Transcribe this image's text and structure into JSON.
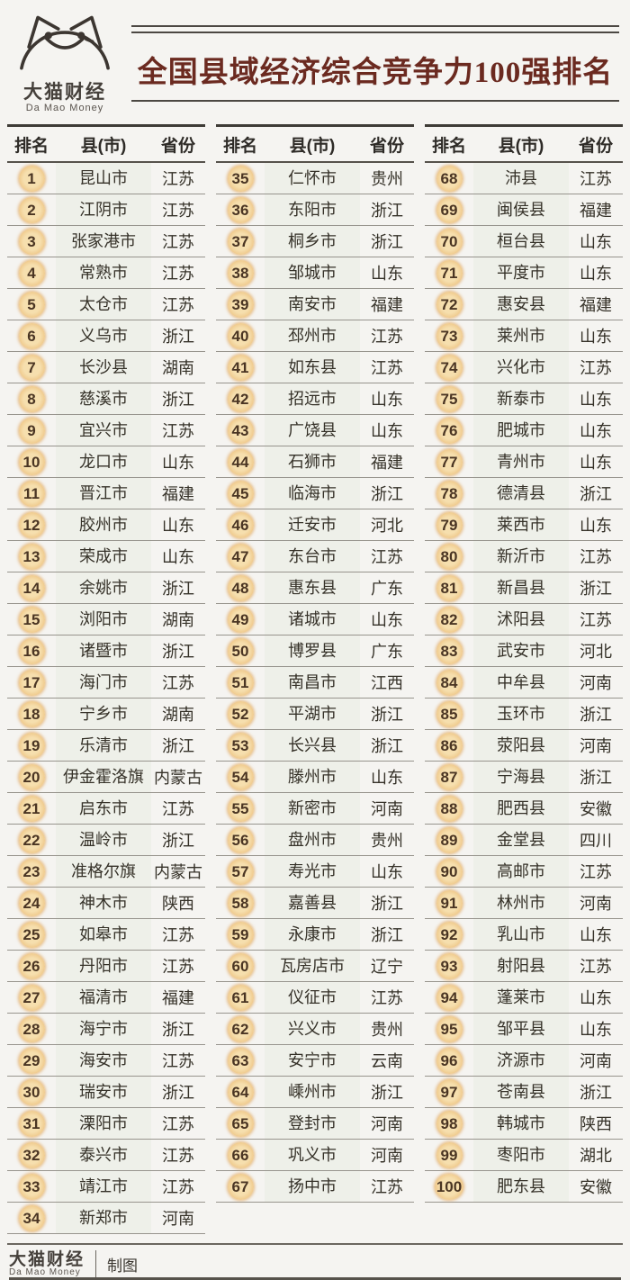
{
  "colors": {
    "accent_title": "#6b2a20",
    "badge_fill": "#efc98c",
    "badge_edge": "#e2a963",
    "text_dark": "#353128",
    "row_line": "#97948d",
    "county_stripe": "#eef0e9",
    "page_bg": "#f5f4f1"
  },
  "logo": {
    "name_cn": "大猫财经",
    "name_en": "Da Mao Money"
  },
  "header": {
    "title": "全国县域经济综合竞争力100强排名"
  },
  "table": {
    "columns": [
      "排名",
      "县(市)",
      "省份"
    ],
    "groups": [
      {
        "rows": [
          {
            "rank": "1",
            "county": "昆山市",
            "province": "江苏"
          },
          {
            "rank": "2",
            "county": "江阴市",
            "province": "江苏"
          },
          {
            "rank": "3",
            "county": "张家港市",
            "province": "江苏"
          },
          {
            "rank": "4",
            "county": "常熟市",
            "province": "江苏"
          },
          {
            "rank": "5",
            "county": "太仓市",
            "province": "江苏"
          },
          {
            "rank": "6",
            "county": "义乌市",
            "province": "浙江"
          },
          {
            "rank": "7",
            "county": "长沙县",
            "province": "湖南"
          },
          {
            "rank": "8",
            "county": "慈溪市",
            "province": "浙江"
          },
          {
            "rank": "9",
            "county": "宜兴市",
            "province": "江苏"
          },
          {
            "rank": "10",
            "county": "龙口市",
            "province": "山东"
          },
          {
            "rank": "11",
            "county": "晋江市",
            "province": "福建"
          },
          {
            "rank": "12",
            "county": "胶州市",
            "province": "山东"
          },
          {
            "rank": "13",
            "county": "荣成市",
            "province": "山东"
          },
          {
            "rank": "14",
            "county": "余姚市",
            "province": "浙江"
          },
          {
            "rank": "15",
            "county": "浏阳市",
            "province": "湖南"
          },
          {
            "rank": "16",
            "county": "诸暨市",
            "province": "浙江"
          },
          {
            "rank": "17",
            "county": "海门市",
            "province": "江苏"
          },
          {
            "rank": "18",
            "county": "宁乡市",
            "province": "湖南"
          },
          {
            "rank": "19",
            "county": "乐清市",
            "province": "浙江"
          },
          {
            "rank": "20",
            "county": "伊金霍洛旗",
            "province": "内蒙古"
          },
          {
            "rank": "21",
            "county": "启东市",
            "province": "江苏"
          },
          {
            "rank": "22",
            "county": "温岭市",
            "province": "浙江"
          },
          {
            "rank": "23",
            "county": "准格尔旗",
            "province": "内蒙古"
          },
          {
            "rank": "24",
            "county": "神木市",
            "province": "陕西"
          },
          {
            "rank": "25",
            "county": "如皋市",
            "province": "江苏"
          },
          {
            "rank": "26",
            "county": "丹阳市",
            "province": "江苏"
          },
          {
            "rank": "27",
            "county": "福清市",
            "province": "福建"
          },
          {
            "rank": "28",
            "county": "海宁市",
            "province": "浙江"
          },
          {
            "rank": "29",
            "county": "海安市",
            "province": "江苏"
          },
          {
            "rank": "30",
            "county": "瑞安市",
            "province": "浙江"
          },
          {
            "rank": "31",
            "county": "溧阳市",
            "province": "江苏"
          },
          {
            "rank": "32",
            "county": "泰兴市",
            "province": "江苏"
          },
          {
            "rank": "33",
            "county": "靖江市",
            "province": "江苏"
          },
          {
            "rank": "34",
            "county": "新郑市",
            "province": "河南"
          }
        ]
      },
      {
        "rows": [
          {
            "rank": "35",
            "county": "仁怀市",
            "province": "贵州"
          },
          {
            "rank": "36",
            "county": "东阳市",
            "province": "浙江"
          },
          {
            "rank": "37",
            "county": "桐乡市",
            "province": "浙江"
          },
          {
            "rank": "38",
            "county": "邹城市",
            "province": "山东"
          },
          {
            "rank": "39",
            "county": "南安市",
            "province": "福建"
          },
          {
            "rank": "40",
            "county": "邳州市",
            "province": "江苏"
          },
          {
            "rank": "41",
            "county": "如东县",
            "province": "江苏"
          },
          {
            "rank": "42",
            "county": "招远市",
            "province": "山东"
          },
          {
            "rank": "43",
            "county": "广饶县",
            "province": "山东"
          },
          {
            "rank": "44",
            "county": "石狮市",
            "province": "福建"
          },
          {
            "rank": "45",
            "county": "临海市",
            "province": "浙江"
          },
          {
            "rank": "46",
            "county": "迁安市",
            "province": "河北"
          },
          {
            "rank": "47",
            "county": "东台市",
            "province": "江苏"
          },
          {
            "rank": "48",
            "county": "惠东县",
            "province": "广东"
          },
          {
            "rank": "49",
            "county": "诸城市",
            "province": "山东"
          },
          {
            "rank": "50",
            "county": "博罗县",
            "province": "广东"
          },
          {
            "rank": "51",
            "county": "南昌市",
            "province": "江西"
          },
          {
            "rank": "52",
            "county": "平湖市",
            "province": "浙江"
          },
          {
            "rank": "53",
            "county": "长兴县",
            "province": "浙江"
          },
          {
            "rank": "54",
            "county": "滕州市",
            "province": "山东"
          },
          {
            "rank": "55",
            "county": "新密市",
            "province": "河南"
          },
          {
            "rank": "56",
            "county": "盘州市",
            "province": "贵州"
          },
          {
            "rank": "57",
            "county": "寿光市",
            "province": "山东"
          },
          {
            "rank": "58",
            "county": "嘉善县",
            "province": "浙江"
          },
          {
            "rank": "59",
            "county": "永康市",
            "province": "浙江"
          },
          {
            "rank": "60",
            "county": "瓦房店市",
            "province": "辽宁"
          },
          {
            "rank": "61",
            "county": "仪征市",
            "province": "江苏"
          },
          {
            "rank": "62",
            "county": "兴义市",
            "province": "贵州"
          },
          {
            "rank": "63",
            "county": "安宁市",
            "province": "云南"
          },
          {
            "rank": "64",
            "county": "嵊州市",
            "province": "浙江"
          },
          {
            "rank": "65",
            "county": "登封市",
            "province": "河南"
          },
          {
            "rank": "66",
            "county": "巩义市",
            "province": "河南"
          },
          {
            "rank": "67",
            "county": "扬中市",
            "province": "江苏"
          }
        ]
      },
      {
        "rows": [
          {
            "rank": "68",
            "county": "沛县",
            "province": "江苏"
          },
          {
            "rank": "69",
            "county": "闽侯县",
            "province": "福建"
          },
          {
            "rank": "70",
            "county": "桓台县",
            "province": "山东"
          },
          {
            "rank": "71",
            "county": "平度市",
            "province": "山东"
          },
          {
            "rank": "72",
            "county": "惠安县",
            "province": "福建"
          },
          {
            "rank": "73",
            "county": "莱州市",
            "province": "山东"
          },
          {
            "rank": "74",
            "county": "兴化市",
            "province": "江苏"
          },
          {
            "rank": "75",
            "county": "新泰市",
            "province": "山东"
          },
          {
            "rank": "76",
            "county": "肥城市",
            "province": "山东"
          },
          {
            "rank": "77",
            "county": "青州市",
            "province": "山东"
          },
          {
            "rank": "78",
            "county": "德清县",
            "province": "浙江"
          },
          {
            "rank": "79",
            "county": "莱西市",
            "province": "山东"
          },
          {
            "rank": "80",
            "county": "新沂市",
            "province": "江苏"
          },
          {
            "rank": "81",
            "county": "新昌县",
            "province": "浙江"
          },
          {
            "rank": "82",
            "county": "沭阳县",
            "province": "江苏"
          },
          {
            "rank": "83",
            "county": "武安市",
            "province": "河北"
          },
          {
            "rank": "84",
            "county": "中牟县",
            "province": "河南"
          },
          {
            "rank": "85",
            "county": "玉环市",
            "province": "浙江"
          },
          {
            "rank": "86",
            "county": "荥阳县",
            "province": "河南"
          },
          {
            "rank": "87",
            "county": "宁海县",
            "province": "浙江"
          },
          {
            "rank": "88",
            "county": "肥西县",
            "province": "安徽"
          },
          {
            "rank": "89",
            "county": "金堂县",
            "province": "四川"
          },
          {
            "rank": "90",
            "county": "高邮市",
            "province": "江苏"
          },
          {
            "rank": "91",
            "county": "林州市",
            "province": "河南"
          },
          {
            "rank": "92",
            "county": "乳山市",
            "province": "山东"
          },
          {
            "rank": "93",
            "county": "射阳县",
            "province": "江苏"
          },
          {
            "rank": "94",
            "county": "蓬莱市",
            "province": "山东"
          },
          {
            "rank": "95",
            "county": "邹平县",
            "province": "山东"
          },
          {
            "rank": "96",
            "county": "济源市",
            "province": "河南"
          },
          {
            "rank": "97",
            "county": "苍南县",
            "province": "浙江"
          },
          {
            "rank": "98",
            "county": "韩城市",
            "province": "陕西"
          },
          {
            "rank": "99",
            "county": "枣阳市",
            "province": "湖北"
          },
          {
            "rank": "100",
            "county": "肥东县",
            "province": "安徽"
          }
        ]
      }
    ]
  },
  "footer": {
    "brand_cn": "大猫财经",
    "brand_en": "Da Mao Money",
    "credit": "制图"
  }
}
